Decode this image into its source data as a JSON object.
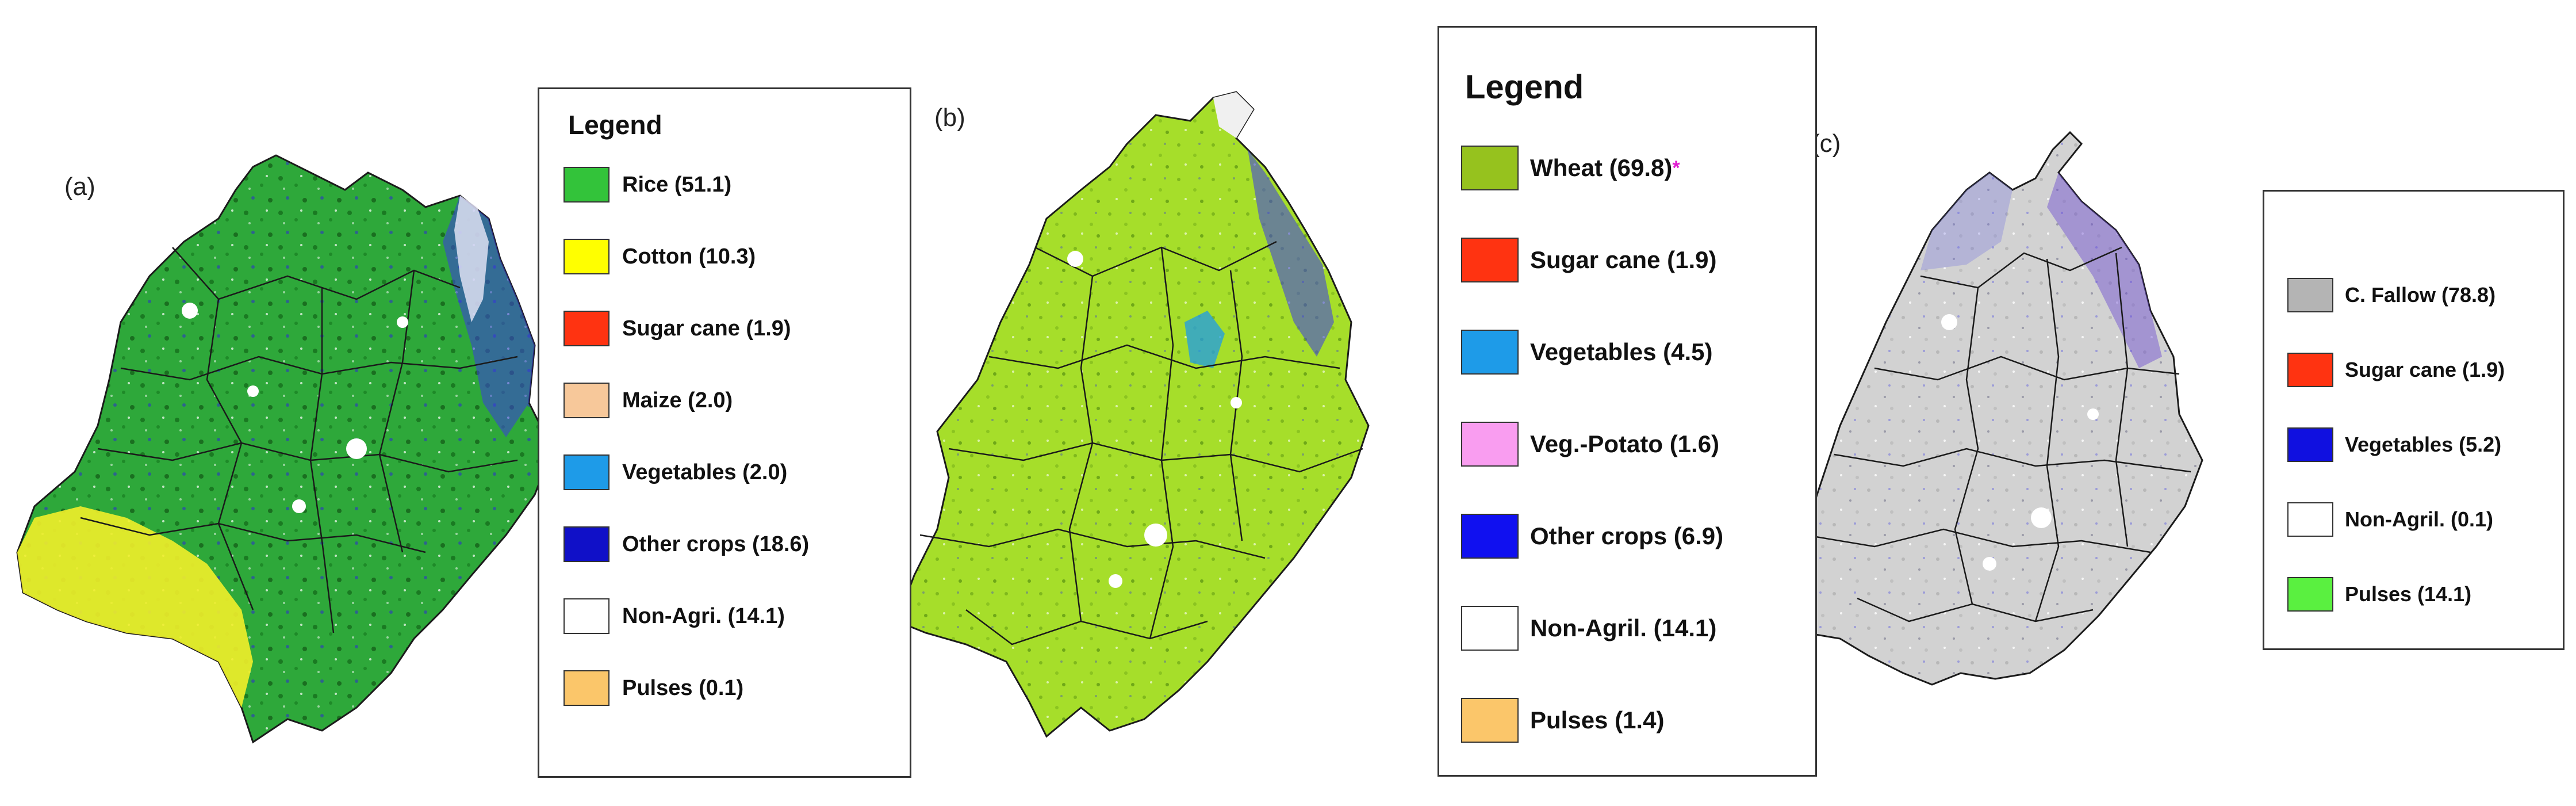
{
  "panels": [
    {
      "label": "(a)",
      "legend": {
        "title": "Legend",
        "items": [
          {
            "label": "Rice (51.1)",
            "color": "#33c33a"
          },
          {
            "label": "Cotton (10.3)",
            "color": "#ffff00"
          },
          {
            "label": "Sugar cane (1.9)",
            "color": "#ff3311"
          },
          {
            "label": "Maize (2.0)",
            "color": "#f7c89a"
          },
          {
            "label": "Vegetables (2.0)",
            "color": "#1e9be8"
          },
          {
            "label": "Other crops (18.6)",
            "color": "#1010c8"
          },
          {
            "label": "Non-Agri. (14.1)",
            "color": "#ffffff"
          },
          {
            "label": "Pulses (0.1)",
            "color": "#fbc66a"
          }
        ]
      },
      "map_fill": "#2ea83a"
    },
    {
      "label": "(b)",
      "legend": {
        "title": "Legend",
        "items": [
          {
            "label": "Wheat (69.8)",
            "color": "#96c21e",
            "marker": "*"
          },
          {
            "label": "Sugar cane (1.9)",
            "color": "#ff3311"
          },
          {
            "label": "Vegetables (4.5)",
            "color": "#1e9be8"
          },
          {
            "label": "Veg.-Potato (1.6)",
            "color": "#f99df0"
          },
          {
            "label": "Other crops (6.9)",
            "color": "#1010f0"
          },
          {
            "label": "Non-Agril. (14.1)",
            "color": "#ffffff"
          },
          {
            "label": "Pulses (1.4)",
            "color": "#fbc66a"
          }
        ]
      },
      "map_fill": "#a6de2a"
    },
    {
      "label": "(c)",
      "legend": {
        "title": "",
        "items": [
          {
            "label": "C. Fallow (78.8)",
            "color": "#b4b4b4"
          },
          {
            "label": "Sugar cane (1.9)",
            "color": "#ff3311"
          },
          {
            "label": "Vegetables (5.2)",
            "color": "#1010e0"
          },
          {
            "label": "Non-Agril. (0.1)",
            "color": "#ffffff"
          },
          {
            "label": "Pulses (14.1)",
            "color": "#5af040"
          }
        ]
      },
      "map_fill": "#d2d2d2"
    }
  ]
}
